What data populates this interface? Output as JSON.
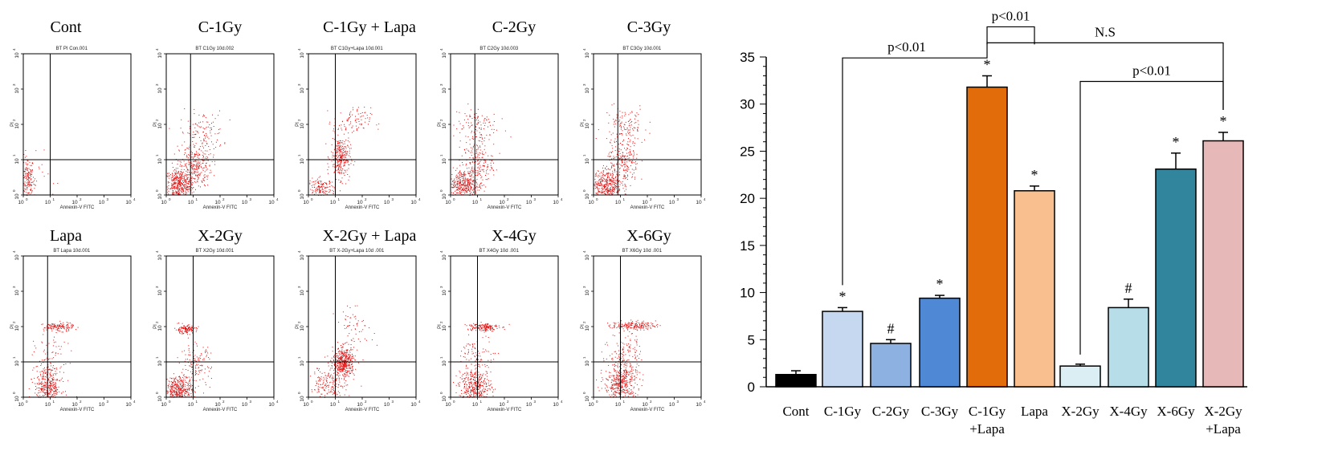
{
  "chart_data": [
    {
      "type": "scatter",
      "title": "Cont",
      "subtitle": "BT PI Con.001",
      "xlabel": "Annexin-V FITC",
      "ylabel": "PI",
      "xscale": "log",
      "yscale": "log",
      "xlim": [
        1,
        10000
      ],
      "ylim": [
        1,
        10000
      ],
      "gate": [
        10,
        10
      ],
      "clusters": [
        {
          "x": 1.4,
          "y": 2.5,
          "sx": 0.12,
          "sy": 0.35,
          "n": 180
        },
        {
          "x": 3,
          "y": 3,
          "sx": 0.35,
          "sy": 0.35,
          "n": 30
        }
      ]
    },
    {
      "type": "scatter",
      "title": "C-1Gy",
      "subtitle": "BT C1Gy 10d.002",
      "xlabel": "Annexin-V FITC",
      "ylabel": "PI",
      "xscale": "log",
      "yscale": "log",
      "xlim": [
        1,
        10000
      ],
      "ylim": [
        1,
        10000
      ],
      "gate": [
        8,
        10
      ],
      "clusters": [
        {
          "x": 3,
          "y": 2,
          "sx": 0.28,
          "sy": 0.22,
          "n": 450
        },
        {
          "x": 12,
          "y": 7,
          "sx": 0.3,
          "sy": 0.3,
          "n": 250
        },
        {
          "x": 20,
          "y": 60,
          "sx": 0.4,
          "sy": 0.3,
          "n": 120
        }
      ]
    },
    {
      "type": "scatter",
      "title": "C-1Gy + Lapa",
      "subtitle": "BT C1Gy+Lapa 10d.001",
      "xlabel": "Annexin-V FITC",
      "ylabel": "PI",
      "xscale": "log",
      "yscale": "log",
      "xlim": [
        1,
        10000
      ],
      "ylim": [
        1,
        10000
      ],
      "gate": [
        10,
        10
      ],
      "clusters": [
        {
          "x": 3,
          "y": 1.5,
          "sx": 0.25,
          "sy": 0.15,
          "n": 160
        },
        {
          "x": 15,
          "y": 12,
          "sx": 0.18,
          "sy": 0.3,
          "n": 300
        },
        {
          "x": 40,
          "y": 120,
          "sx": 0.35,
          "sy": 0.2,
          "n": 90
        }
      ]
    },
    {
      "type": "scatter",
      "title": "C-2Gy",
      "subtitle": "BT C2Gy 10d.003",
      "xlabel": "Annexin-V FITC",
      "ylabel": "PI",
      "xscale": "log",
      "yscale": "log",
      "xlim": [
        1,
        10000
      ],
      "ylim": [
        1,
        10000
      ],
      "gate": [
        8,
        10
      ],
      "clusters": [
        {
          "x": 3,
          "y": 2,
          "sx": 0.28,
          "sy": 0.22,
          "n": 380
        },
        {
          "x": 10,
          "y": 8,
          "sx": 0.28,
          "sy": 0.3,
          "n": 180
        },
        {
          "x": 8,
          "y": 90,
          "sx": 0.4,
          "sy": 0.3,
          "n": 120
        }
      ]
    },
    {
      "type": "scatter",
      "title": "C-3Gy",
      "subtitle": "BT C3Gy 10d.001",
      "xlabel": "Annexin-V FITC",
      "ylabel": "PI",
      "xscale": "log",
      "yscale": "log",
      "xlim": [
        1,
        10000
      ],
      "ylim": [
        1,
        10000
      ],
      "gate": [
        8,
        10
      ],
      "clusters": [
        {
          "x": 3,
          "y": 2,
          "sx": 0.28,
          "sy": 0.22,
          "n": 400
        },
        {
          "x": 12,
          "y": 8,
          "sx": 0.3,
          "sy": 0.32,
          "n": 230
        },
        {
          "x": 15,
          "y": 90,
          "sx": 0.4,
          "sy": 0.3,
          "n": 130
        }
      ]
    },
    {
      "type": "scatter",
      "title": "Lapa",
      "subtitle": "BT Lapa 10d.001",
      "xlabel": "Annexin-V FITC",
      "ylabel": "PI",
      "xscale": "log",
      "yscale": "log",
      "xlim": [
        1,
        10000
      ],
      "ylim": [
        1,
        10000
      ],
      "gate": [
        8,
        10
      ],
      "clusters": [
        {
          "x": 8,
          "y": 2,
          "sx": 0.25,
          "sy": 0.3,
          "n": 380
        },
        {
          "x": 20,
          "y": 100,
          "sx": 0.28,
          "sy": 0.06,
          "n": 130
        },
        {
          "x": 10,
          "y": 15,
          "sx": 0.3,
          "sy": 0.3,
          "n": 60
        }
      ]
    },
    {
      "type": "scatter",
      "title": "X-2Gy",
      "subtitle": "BT X2Gy 10d.001",
      "xlabel": "Annexin-V FITC",
      "ylabel": "PI",
      "xscale": "log",
      "yscale": "log",
      "xlim": [
        1,
        10000
      ],
      "ylim": [
        1,
        10000
      ],
      "gate": [
        10,
        10
      ],
      "clusters": [
        {
          "x": 3,
          "y": 1.6,
          "sx": 0.25,
          "sy": 0.2,
          "n": 420
        },
        {
          "x": 5,
          "y": 85,
          "sx": 0.2,
          "sy": 0.06,
          "n": 130
        },
        {
          "x": 12,
          "y": 8,
          "sx": 0.28,
          "sy": 0.3,
          "n": 140
        }
      ]
    },
    {
      "type": "scatter",
      "title": "X-2Gy + Lapa",
      "subtitle": "BT X-2Gy+Lapa 10d .001",
      "xlabel": "Annexin-V FITC",
      "ylabel": "PI",
      "xscale": "log",
      "yscale": "log",
      "xlim": [
        1,
        10000
      ],
      "ylim": [
        1,
        10000
      ],
      "gate": [
        10,
        10
      ],
      "clusters": [
        {
          "x": 20,
          "y": 10,
          "sx": 0.2,
          "sy": 0.2,
          "n": 450
        },
        {
          "x": 5,
          "y": 2,
          "sx": 0.35,
          "sy": 0.3,
          "n": 200
        },
        {
          "x": 50,
          "y": 100,
          "sx": 0.35,
          "sy": 0.25,
          "n": 60
        }
      ]
    },
    {
      "type": "scatter",
      "title": "X-4Gy",
      "subtitle": "BT X4Gy 10d .001",
      "xlabel": "Annexin-V FITC",
      "ylabel": "PI",
      "xscale": "log",
      "yscale": "log",
      "xlim": [
        1,
        10000
      ],
      "ylim": [
        1,
        10000
      ],
      "gate": [
        10,
        10
      ],
      "clusters": [
        {
          "x": 8,
          "y": 2,
          "sx": 0.3,
          "sy": 0.25,
          "n": 420
        },
        {
          "x": 15,
          "y": 100,
          "sx": 0.3,
          "sy": 0.06,
          "n": 160
        },
        {
          "x": 10,
          "y": 15,
          "sx": 0.3,
          "sy": 0.3,
          "n": 90
        }
      ]
    },
    {
      "type": "scatter",
      "title": "X-6Gy",
      "subtitle": "BT X6Gy 10d .001",
      "xlabel": "Annexin-V FITC",
      "ylabel": "PI",
      "xscale": "log",
      "yscale": "log",
      "xlim": [
        1,
        10000
      ],
      "ylim": [
        1,
        10000
      ],
      "gate": [
        10,
        10
      ],
      "clusters": [
        {
          "x": 10,
          "y": 2.5,
          "sx": 0.3,
          "sy": 0.28,
          "n": 460
        },
        {
          "x": 30,
          "y": 110,
          "sx": 0.4,
          "sy": 0.06,
          "n": 180
        },
        {
          "x": 15,
          "y": 20,
          "sx": 0.3,
          "sy": 0.3,
          "n": 120
        }
      ]
    },
    {
      "type": "bar",
      "categories": [
        "Cont",
        "C-1Gy",
        "C-2Gy",
        "C-3Gy",
        "C-1Gy\n+Lapa",
        "Lapa",
        "X-2Gy",
        "X-4Gy",
        "X-6Gy",
        "X-2Gy\n+Lapa"
      ],
      "values": [
        1.3,
        8.0,
        4.6,
        9.4,
        31.8,
        20.8,
        2.2,
        8.4,
        23.1,
        26.1
      ],
      "errors": [
        0.4,
        0.4,
        0.4,
        0.3,
        1.2,
        0.5,
        0.2,
        0.9,
        1.7,
        0.9
      ],
      "colors": [
        "#000000",
        "#c6d8f0",
        "#8db1e1",
        "#4f88d4",
        "#e36c0a",
        "#f9bf8f",
        "#daeef3",
        "#b6dde8",
        "#31859c",
        "#e6b8b7"
      ],
      "markers": [
        "",
        "*",
        "#",
        "*",
        "*",
        "*",
        "",
        "#",
        "*",
        "*"
      ],
      "ylim": [
        0,
        35
      ],
      "yticks": [
        0,
        5,
        10,
        15,
        20,
        25,
        30,
        35
      ],
      "annotations": [
        {
          "text": "p<0.01",
          "from": 1,
          "to": 4,
          "y": 34.9
        },
        {
          "text": "p<0.01",
          "from": 4,
          "to": 5,
          "y": 38.2
        },
        {
          "text": "N.S",
          "from": 4,
          "to": 9,
          "y": 36.5
        },
        {
          "text": "p<0.01",
          "from": 6,
          "to": 9,
          "y": 32.4
        }
      ]
    }
  ]
}
